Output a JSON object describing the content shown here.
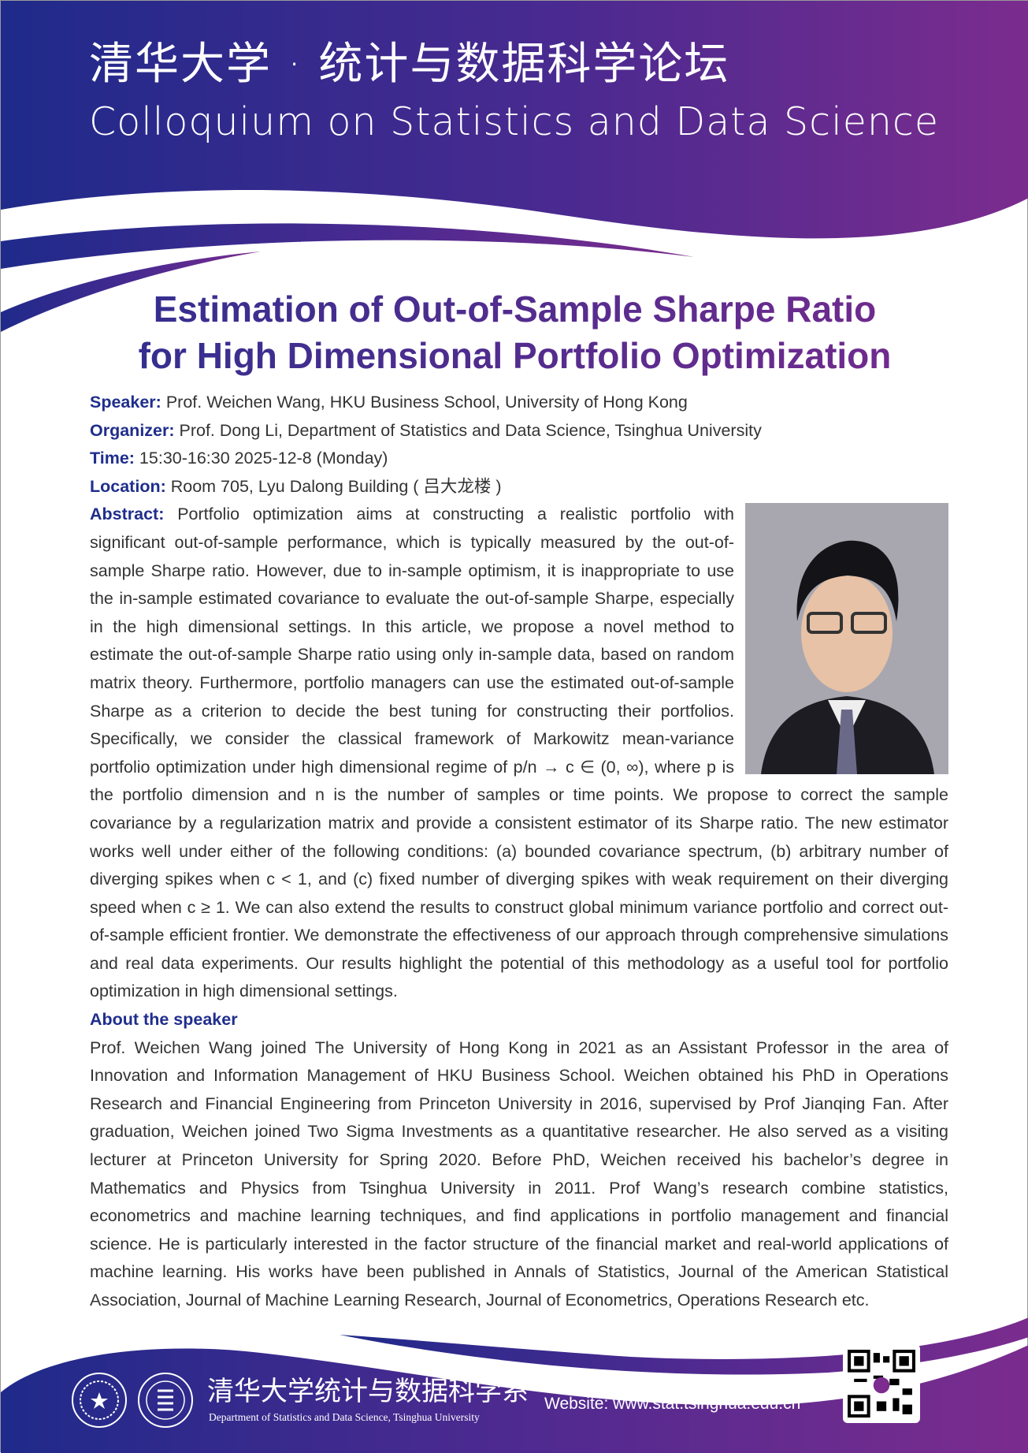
{
  "header": {
    "cn_title": "清华大学 · 统计与数据科学论坛",
    "en_title": "Colloquium on Statistics and Data Science"
  },
  "colors": {
    "blue": "#1f2e8c",
    "purple": "#7a2a8e"
  },
  "talk": {
    "title_line1": "Estimation of Out-of-Sample Sharpe Ratio",
    "title_line2": "for High Dimensional Portfolio Optimization"
  },
  "info": {
    "speaker_label": "Speaker:",
    "speaker": " Prof. Weichen Wang, HKU Business School, University of Hong Kong",
    "organizer_label": "Organizer:",
    "organizer": "  Prof. Dong Li, Department of Statistics and Data Science, Tsinghua University",
    "time_label": "Time:",
    "time": " 15:30-16:30 2025-12-8 (Monday)",
    "location_label": "Location:",
    "location": " Room 705, Lyu Dalong Building ( 吕大龙楼 )",
    "abstract_label": "Abstract:",
    "abstract": "  Portfolio optimization aims at constructing a realistic portfolio with significant out-of-sample performance, which is typically measured by the out-of-sample Sharpe ratio. However, due to in-sample optimism, it is inappropriate to use the in-sample estimated covariance to evaluate the out-of-sample Sharpe, especially in the high dimensional settings. In this article, we propose a novel method to estimate the out-of-sample Sharpe ratio using only in-sample data, based on random matrix theory. Furthermore, portfolio managers can use the estimated out-of-sample Sharpe as a criterion to decide the best tuning for constructing their portfolios. Specifically, we consider the classical framework of Markowitz mean-variance portfolio optimization under high dimensional regime of p/n → c ∈ (0, ∞), where p is the portfolio dimension and n is the number of samples or time points. We propose to correct the sample covariance by a regularization matrix and provide a consistent estimator of its Sharpe ratio. The new estimator works well under either of the following conditions: (a) bounded covariance spectrum, (b) arbitrary number of diverging spikes when c < 1, and (c) fixed number of diverging spikes with weak requirement on their diverging speed when c ≥ 1. We can also extend the results to construct global minimum variance portfolio and correct out-of-sample efficient frontier. We demonstrate the effectiveness of our approach through comprehensive simulations and real data experiments. Our results highlight the potential of this methodology as a useful tool for portfolio optimization in high dimensional settings.",
    "about_label": "About the speaker",
    "about": "Prof. Weichen Wang joined The University of Hong Kong in 2021 as an Assistant Professor in the area of Innovation and Information Management of HKU Business School. Weichen obtained his PhD in Operations Research and Financial Engineering from Princeton University in 2016, supervised by Prof Jianqing Fan. After graduation, Weichen joined Two Sigma Investments as a quantitative researcher. He also served as a visiting lecturer at Princeton University for Spring 2020. Before PhD, Weichen received his bachelor’s degree in Mathematics and Physics from Tsinghua University in 2011. Prof Wang’s research combine statistics, econometrics and machine learning techniques, and find applications in portfolio management and financial science. He is particularly interested in the factor structure of the financial market and real-world applications of machine learning. His works have been published in Annals of Statistics, Journal of the American Statistical Association, Journal of Machine Learning Research, Journal of Econometrics, Operations Research etc."
  },
  "footer": {
    "dept_cn": "清华大学统计与数据科学系",
    "dept_en": "Department of Statistics and Data Science, Tsinghua University",
    "website_label": "Website:",
    "website": "www.stat.tsinghua.edu.cn"
  }
}
